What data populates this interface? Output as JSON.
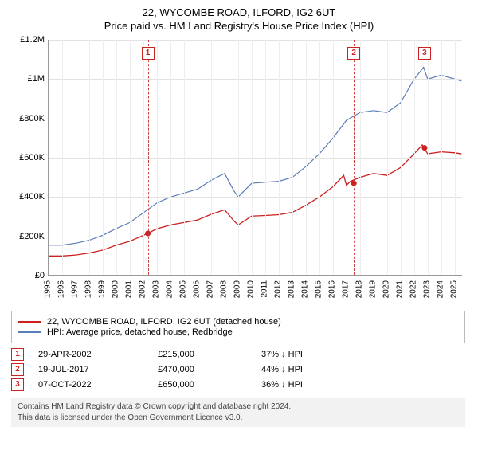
{
  "title": {
    "line1": "22, WYCOMBE ROAD, ILFORD, IG2 6UT",
    "line2": "Price paid vs. HM Land Registry's House Price Index (HPI)"
  },
  "chart": {
    "type": "line",
    "xlim": [
      1995,
      2025.6
    ],
    "ylim": [
      0,
      1200000
    ],
    "ytick_step": 200000,
    "yticks": [
      {
        "v": 0,
        "label": "£0"
      },
      {
        "v": 200000,
        "label": "£200K"
      },
      {
        "v": 400000,
        "label": "£400K"
      },
      {
        "v": 600000,
        "label": "£600K"
      },
      {
        "v": 800000,
        "label": "£800K"
      },
      {
        "v": 1000000,
        "label": "£1M"
      },
      {
        "v": 1200000,
        "label": "£1.2M"
      }
    ],
    "xticks": [
      1995,
      1996,
      1997,
      1998,
      1999,
      2000,
      2001,
      2002,
      2003,
      2004,
      2005,
      2006,
      2007,
      2008,
      2009,
      2010,
      2011,
      2012,
      2013,
      2014,
      2015,
      2016,
      2017,
      2018,
      2019,
      2020,
      2021,
      2022,
      2023,
      2024,
      2025
    ],
    "background_color": "#ffffff",
    "grid_color": "#e2e2e2",
    "series": [
      {
        "name": "hpi",
        "label": "HPI: Average price, detached house, Redbridge",
        "color": "#5b7db8",
        "width": 1.2,
        "points": [
          [
            1995,
            155000
          ],
          [
            1996,
            155000
          ],
          [
            1997,
            165000
          ],
          [
            1998,
            180000
          ],
          [
            1999,
            205000
          ],
          [
            2000,
            240000
          ],
          [
            2001,
            270000
          ],
          [
            2002,
            320000
          ],
          [
            2003,
            370000
          ],
          [
            2004,
            400000
          ],
          [
            2005,
            420000
          ],
          [
            2006,
            440000
          ],
          [
            2007,
            485000
          ],
          [
            2008,
            520000
          ],
          [
            2008.7,
            430000
          ],
          [
            2009,
            400000
          ],
          [
            2010,
            470000
          ],
          [
            2011,
            475000
          ],
          [
            2012,
            480000
          ],
          [
            2013,
            500000
          ],
          [
            2014,
            555000
          ],
          [
            2015,
            620000
          ],
          [
            2016,
            700000
          ],
          [
            2017,
            790000
          ],
          [
            2018,
            830000
          ],
          [
            2019,
            840000
          ],
          [
            2020,
            830000
          ],
          [
            2021,
            880000
          ],
          [
            2022,
            1000000
          ],
          [
            2022.7,
            1060000
          ],
          [
            2023,
            1000000
          ],
          [
            2024,
            1020000
          ],
          [
            2025,
            1000000
          ],
          [
            2025.5,
            990000
          ]
        ]
      },
      {
        "name": "property",
        "label": "22, WYCOMBE ROAD, ILFORD, IG2 6UT (detached house)",
        "color": "#cc2020",
        "width": 1.3,
        "points": [
          [
            1995,
            100000
          ],
          [
            1996,
            100000
          ],
          [
            1997,
            105000
          ],
          [
            1998,
            115000
          ],
          [
            1999,
            130000
          ],
          [
            2000,
            155000
          ],
          [
            2001,
            175000
          ],
          [
            2002,
            205000
          ],
          [
            2003,
            238000
          ],
          [
            2004,
            258000
          ],
          [
            2005,
            270000
          ],
          [
            2006,
            283000
          ],
          [
            2007,
            312000
          ],
          [
            2008,
            335000
          ],
          [
            2008.7,
            278000
          ],
          [
            2009,
            258000
          ],
          [
            2010,
            303000
          ],
          [
            2011,
            306000
          ],
          [
            2012,
            310000
          ],
          [
            2013,
            322000
          ],
          [
            2014,
            358000
          ],
          [
            2015,
            400000
          ],
          [
            2016,
            452000
          ],
          [
            2016.8,
            510000
          ],
          [
            2017,
            460000
          ],
          [
            2017.3,
            480000
          ],
          [
            2018,
            500000
          ],
          [
            2019,
            520000
          ],
          [
            2020,
            510000
          ],
          [
            2021,
            550000
          ],
          [
            2022,
            620000
          ],
          [
            2022.6,
            665000
          ],
          [
            2023,
            620000
          ],
          [
            2024,
            630000
          ],
          [
            2025,
            625000
          ],
          [
            2025.5,
            620000
          ]
        ]
      }
    ],
    "markers": [
      {
        "n": "1",
        "x": 2002.33,
        "box_y": 1130000,
        "dot_y": 215000
      },
      {
        "n": "2",
        "x": 2017.55,
        "box_y": 1130000,
        "dot_y": 470000
      },
      {
        "n": "3",
        "x": 2022.77,
        "box_y": 1130000,
        "dot_y": 650000
      }
    ]
  },
  "legend": {
    "items": [
      {
        "color": "#cc2020",
        "label": "22, WYCOMBE ROAD, ILFORD, IG2 6UT (detached house)"
      },
      {
        "color": "#5b7db8",
        "label": "HPI: Average price, detached house, Redbridge"
      }
    ]
  },
  "sales": [
    {
      "n": "1",
      "date": "29-APR-2002",
      "price": "£215,000",
      "delta": "37% ↓ HPI"
    },
    {
      "n": "2",
      "date": "19-JUL-2017",
      "price": "£470,000",
      "delta": "44% ↓ HPI"
    },
    {
      "n": "3",
      "date": "07-OCT-2022",
      "price": "£650,000",
      "delta": "36% ↓ HPI"
    }
  ],
  "attribution": {
    "line1": "Contains HM Land Registry data © Crown copyright and database right 2024.",
    "line2": "This data is licensed under the Open Government Licence v3.0."
  }
}
